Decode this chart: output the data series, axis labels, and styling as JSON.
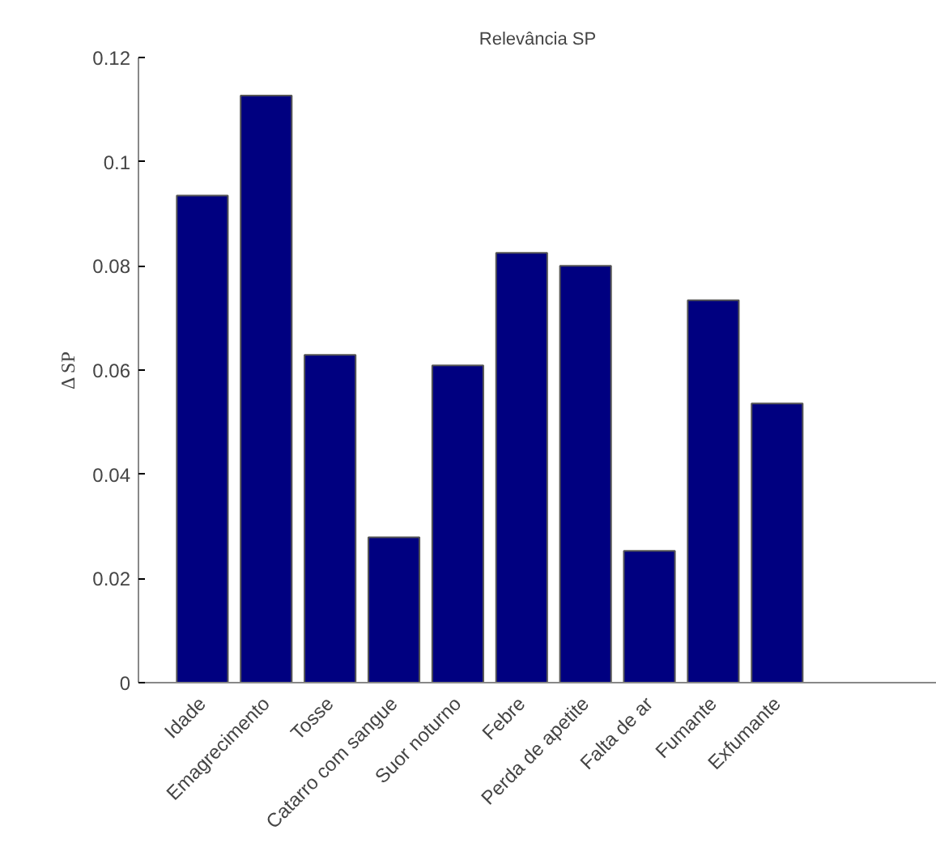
{
  "chart_data": {
    "type": "bar",
    "title": "Relevância SP",
    "ylabel": "Δ SP",
    "categories": [
      "Idade",
      "Emagrecimento",
      "Tosse",
      "Catarro com sangue",
      "Suor noturno",
      "Febre",
      "Perda de apetite",
      "Falta de ar",
      "Fumante",
      "Exfumante"
    ],
    "values": [
      0.0935,
      0.1127,
      0.0629,
      0.0279,
      0.0609,
      0.0825,
      0.08,
      0.0253,
      0.0734,
      0.0536
    ],
    "color": "#000080",
    "ylim": [
      0,
      0.12
    ],
    "yticks": [
      0,
      0.02,
      0.04,
      0.06,
      0.08,
      0.1,
      0.12
    ],
    "grid": false
  }
}
